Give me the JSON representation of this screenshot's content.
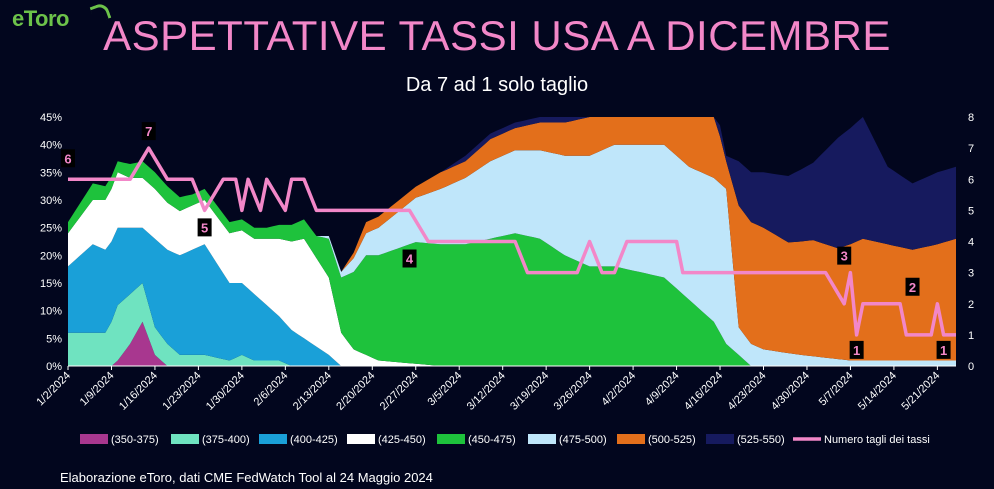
{
  "brand": {
    "logo_text": "eToro"
  },
  "chart_data": {
    "type": "area",
    "title": "ASPETTATIVE TASSI USA A DICEMBRE",
    "subtitle": "Da 7 ad 1 solo taglio",
    "source": "Elaborazione eToro, dati CME FedWatch Tool al 24 Maggio 2024",
    "x_ticks": [
      "1/2/2024",
      "1/9/2024",
      "1/16/2024",
      "1/23/2024",
      "1/30/2024",
      "2/6/2024",
      "2/13/2024",
      "2/20/2024",
      "2/27/2024",
      "3/5/2024",
      "3/12/2024",
      "3/19/2024",
      "3/26/2024",
      "4/2/2024",
      "4/9/2024",
      "4/16/2024",
      "4/23/2024",
      "4/30/2024",
      "5/7/2024",
      "5/14/2024",
      "5/21/2024"
    ],
    "x_range": [
      "1/2/2024",
      "5/24/2024"
    ],
    "y_left": {
      "ticks": [
        "0%",
        "5%",
        "10%",
        "15%",
        "20%",
        "25%",
        "30%",
        "35%",
        "40%",
        "45%"
      ],
      "range": [
        0,
        45
      ]
    },
    "y_right": {
      "ticks": [
        "0",
        "1",
        "2",
        "3",
        "4",
        "5",
        "6",
        "7",
        "8"
      ],
      "range": [
        0,
        8
      ]
    },
    "stacked_top_percent": 35,
    "series": [
      {
        "name": "(350-375)",
        "color": "#a8378f",
        "values": [
          [
            0,
            0
          ],
          [
            7,
            0
          ],
          [
            8,
            1
          ],
          [
            10,
            4
          ],
          [
            12,
            8
          ],
          [
            14,
            2
          ],
          [
            16,
            0
          ],
          [
            22,
            0
          ],
          [
            28,
            0
          ],
          [
            34,
            0
          ],
          [
            143,
            0
          ]
        ]
      },
      {
        "name": "(375-400)",
        "color": "#6fe3c0",
        "values": [
          [
            0,
            6
          ],
          [
            6,
            6
          ],
          [
            8,
            10
          ],
          [
            10,
            9
          ],
          [
            12,
            7
          ],
          [
            14,
            5
          ],
          [
            16,
            4
          ],
          [
            18,
            2
          ],
          [
            22,
            2
          ],
          [
            26,
            1
          ],
          [
            28,
            2
          ],
          [
            30,
            1
          ],
          [
            34,
            1
          ],
          [
            36,
            0
          ],
          [
            143,
            0
          ]
        ]
      },
      {
        "name": "(400-425)",
        "color": "#1aa0d8",
        "values": [
          [
            0,
            12
          ],
          [
            4,
            16
          ],
          [
            8,
            14
          ],
          [
            10,
            12
          ],
          [
            12,
            10
          ],
          [
            14,
            16
          ],
          [
            18,
            18
          ],
          [
            22,
            20
          ],
          [
            26,
            14
          ],
          [
            30,
            12
          ],
          [
            34,
            8
          ],
          [
            38,
            5
          ],
          [
            42,
            2
          ],
          [
            44,
            0
          ],
          [
            143,
            0
          ]
        ]
      },
      {
        "name": "(425-450)",
        "color": "#ffffff",
        "values": [
          [
            0,
            6
          ],
          [
            4,
            8
          ],
          [
            8,
            10
          ],
          [
            10,
            9
          ],
          [
            14,
            9
          ],
          [
            18,
            8
          ],
          [
            22,
            8
          ],
          [
            26,
            9
          ],
          [
            30,
            10
          ],
          [
            34,
            14
          ],
          [
            38,
            18
          ],
          [
            42,
            14
          ],
          [
            44,
            6
          ],
          [
            46,
            3
          ],
          [
            50,
            1
          ],
          [
            60,
            0
          ],
          [
            143,
            0
          ]
        ]
      },
      {
        "name": "(450-475)",
        "color": "#1ec23c",
        "values": [
          [
            0,
            2
          ],
          [
            4,
            3
          ],
          [
            8,
            2
          ],
          [
            12,
            3
          ],
          [
            16,
            3
          ],
          [
            20,
            2
          ],
          [
            24,
            2
          ],
          [
            28,
            2
          ],
          [
            32,
            2
          ],
          [
            36,
            3
          ],
          [
            40,
            4
          ],
          [
            44,
            10
          ],
          [
            48,
            18
          ],
          [
            52,
            20
          ],
          [
            56,
            22
          ],
          [
            60,
            22
          ],
          [
            64,
            22
          ],
          [
            68,
            23
          ],
          [
            72,
            24
          ],
          [
            76,
            23
          ],
          [
            80,
            20
          ],
          [
            84,
            18
          ],
          [
            88,
            18
          ],
          [
            92,
            17
          ],
          [
            96,
            16
          ],
          [
            100,
            12
          ],
          [
            104,
            8
          ],
          [
            106,
            4
          ],
          [
            108,
            2
          ],
          [
            110,
            0
          ],
          [
            143,
            0
          ]
        ]
      },
      {
        "name": "(475-500)",
        "color": "#bfe6fa",
        "values": [
          [
            0,
            0
          ],
          [
            40,
            0
          ],
          [
            44,
            1
          ],
          [
            48,
            4
          ],
          [
            52,
            6
          ],
          [
            56,
            8
          ],
          [
            60,
            10
          ],
          [
            64,
            12
          ],
          [
            68,
            14
          ],
          [
            72,
            15
          ],
          [
            76,
            16
          ],
          [
            80,
            18
          ],
          [
            84,
            20
          ],
          [
            88,
            22
          ],
          [
            92,
            23
          ],
          [
            96,
            24
          ],
          [
            100,
            24
          ],
          [
            104,
            26
          ],
          [
            106,
            28
          ],
          [
            108,
            5
          ],
          [
            112,
            3
          ],
          [
            118,
            2
          ],
          [
            126,
            1
          ],
          [
            134,
            1
          ],
          [
            143,
            1
          ]
        ]
      },
      {
        "name": "(500-525)",
        "color": "#e36f1b",
        "values": [
          [
            0,
            0
          ],
          [
            44,
            0
          ],
          [
            48,
            2
          ],
          [
            52,
            2
          ],
          [
            56,
            2
          ],
          [
            60,
            3
          ],
          [
            64,
            3
          ],
          [
            68,
            4
          ],
          [
            72,
            4
          ],
          [
            76,
            5
          ],
          [
            80,
            6
          ],
          [
            84,
            7
          ],
          [
            88,
            8
          ],
          [
            92,
            9
          ],
          [
            96,
            10
          ],
          [
            100,
            11
          ],
          [
            104,
            12
          ],
          [
            106,
            5
          ],
          [
            108,
            22
          ],
          [
            112,
            22
          ],
          [
            116,
            20
          ],
          [
            120,
            21
          ],
          [
            124,
            20
          ],
          [
            128,
            22
          ],
          [
            132,
            21
          ],
          [
            136,
            20
          ],
          [
            140,
            21
          ],
          [
            143,
            22
          ]
        ]
      },
      {
        "name": "(525-550)",
        "color": "#161a5e",
        "values": [
          [
            0,
            0
          ],
          [
            60,
            0
          ],
          [
            64,
            1
          ],
          [
            70,
            1
          ],
          [
            76,
            1
          ],
          [
            80,
            1
          ],
          [
            84,
            1
          ],
          [
            88,
            1
          ],
          [
            92,
            2
          ],
          [
            96,
            2
          ],
          [
            100,
            2
          ],
          [
            104,
            3
          ],
          [
            106,
            1
          ],
          [
            108,
            8
          ],
          [
            112,
            10
          ],
          [
            116,
            12
          ],
          [
            120,
            14
          ],
          [
            124,
            20
          ],
          [
            128,
            22
          ],
          [
            132,
            14
          ],
          [
            136,
            12
          ],
          [
            140,
            13
          ],
          [
            143,
            13
          ]
        ]
      }
    ],
    "line_series": {
      "name": "Numero tagli dei tassi",
      "color": "#f287c8",
      "axis": "right",
      "values": [
        [
          0,
          6
        ],
        [
          4,
          6
        ],
        [
          8,
          6
        ],
        [
          10,
          6
        ],
        [
          13,
          7
        ],
        [
          16,
          6
        ],
        [
          18,
          6
        ],
        [
          20,
          6
        ],
        [
          22,
          5
        ],
        [
          25,
          6
        ],
        [
          27,
          6
        ],
        [
          28,
          5
        ],
        [
          29,
          6
        ],
        [
          31,
          5
        ],
        [
          32,
          6
        ],
        [
          35,
          5
        ],
        [
          36,
          6
        ],
        [
          38,
          6
        ],
        [
          40,
          5
        ],
        [
          44,
          5
        ],
        [
          48,
          5
        ],
        [
          52,
          5
        ],
        [
          55,
          5
        ],
        [
          58,
          4
        ],
        [
          62,
          4
        ],
        [
          68,
          4
        ],
        [
          72,
          4
        ],
        [
          74,
          3
        ],
        [
          78,
          3
        ],
        [
          82,
          3
        ],
        [
          84,
          4
        ],
        [
          86,
          3
        ],
        [
          88,
          3
        ],
        [
          90,
          4
        ],
        [
          94,
          4
        ],
        [
          98,
          4
        ],
        [
          99,
          3
        ],
        [
          104,
          3
        ],
        [
          110,
          3
        ],
        [
          116,
          3
        ],
        [
          120,
          3
        ],
        [
          122,
          3
        ],
        [
          125,
          2
        ],
        [
          126,
          3
        ],
        [
          127,
          1
        ],
        [
          128,
          2
        ],
        [
          131,
          2
        ],
        [
          132,
          2
        ],
        [
          134,
          2
        ],
        [
          135,
          1
        ],
        [
          138,
          1
        ],
        [
          139,
          1
        ],
        [
          140,
          2
        ],
        [
          141,
          1
        ],
        [
          143,
          1
        ]
      ]
    },
    "annotations": [
      {
        "text": "6",
        "x": 0,
        "value": 6
      },
      {
        "text": "7",
        "x": 13,
        "value": 7
      },
      {
        "text": "5",
        "x": 22,
        "value": 5
      },
      {
        "text": "4",
        "x": 55,
        "value": 4
      },
      {
        "text": "3",
        "x": 125,
        "value": 3
      },
      {
        "text": "1",
        "x": 127,
        "value": 1
      },
      {
        "text": "2",
        "x": 136,
        "value": 2
      },
      {
        "text": "1",
        "x": 141,
        "value": 1
      }
    ],
    "legend_position": "bottom"
  }
}
